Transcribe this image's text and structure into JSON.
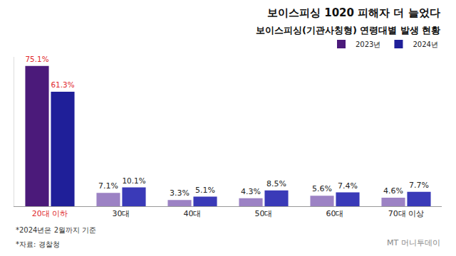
{
  "chart_data": {
    "type": "bar",
    "title": "보이스피싱 1020 피해자 더 늘었다",
    "subtitle": "보이스피싱(기관사칭형) 연령대별 발생 현황",
    "categories": [
      "20대 이하",
      "30대",
      "40대",
      "50대",
      "60대",
      "70대 이상"
    ],
    "series": [
      {
        "name": "2023년",
        "colors": [
          "#4b1a7a",
          "#9c82c4",
          "#9c82c4",
          "#9c82c4",
          "#9c82c4",
          "#9c82c4"
        ],
        "values": [
          75.1,
          7.1,
          3.3,
          4.3,
          5.6,
          4.6
        ],
        "value_labels": [
          "75.1%",
          "7.1%",
          "3.3%",
          "4.3%",
          "5.6%",
          "4.6%"
        ]
      },
      {
        "name": "2024년",
        "colors": [
          "#1f1f99",
          "#3a3ab8",
          "#3a3ab8",
          "#3a3ab8",
          "#3a3ab8",
          "#3a3ab8"
        ],
        "values": [
          61.3,
          10.1,
          5.1,
          8.5,
          7.4,
          7.7
        ],
        "value_labels": [
          "61.3%",
          "10.1%",
          "5.1%",
          "8.5%",
          "7.4%",
          "7.7%"
        ]
      }
    ],
    "ylim": [
      0,
      80
    ],
    "tick_labels": "x",
    "data_labels": true,
    "legend": "top right",
    "notes": [
      "*2024년은 2월까지 기준",
      "*자료: 경찰청"
    ],
    "source": "MT 머니투데이"
  }
}
